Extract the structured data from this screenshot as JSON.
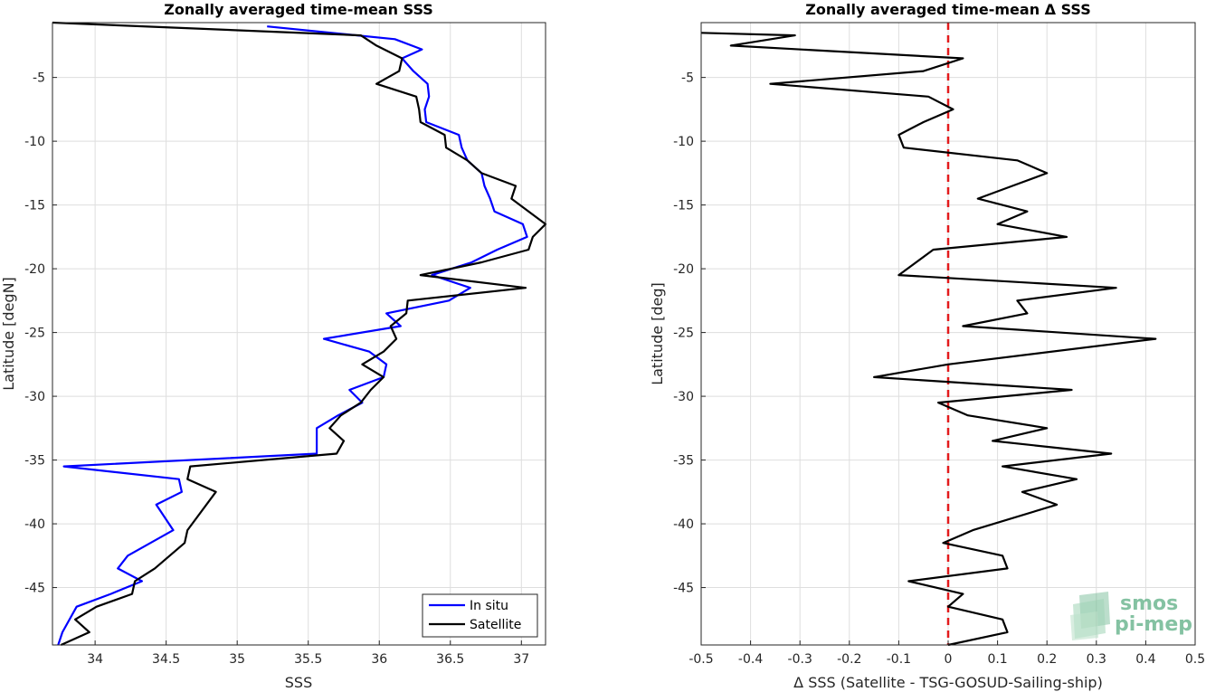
{
  "chart_data": [
    {
      "type": "line",
      "title": "Zonally averaged time-mean SSS",
      "xlabel": "SSS",
      "ylabel": "Latitude [degN]",
      "xlim": [
        33.7,
        37.17
      ],
      "ylim": [
        -49.5,
        -0.7
      ],
      "xticks": [
        34,
        34.5,
        35,
        35.5,
        36,
        36.5,
        37
      ],
      "xtick_labels": [
        "34",
        "34.5",
        "35",
        "35.5",
        "36",
        "36.5",
        "37"
      ],
      "yticks": [
        -5,
        -10,
        -15,
        -20,
        -25,
        -30,
        -35,
        -40,
        -45
      ],
      "ytick_labels": [
        "-5",
        "-10",
        "-15",
        "-20",
        "-25",
        "-30",
        "-35",
        "-40",
        "-45"
      ],
      "grid": true,
      "legend": "bottom-right",
      "series": [
        {
          "name": "In situ",
          "color": "#0000ff",
          "x": [
            35.21,
            36.11,
            36.3,
            36.16,
            36.24,
            36.34,
            36.35,
            36.32,
            36.33,
            36.56,
            36.58,
            36.62,
            36.72,
            36.74,
            36.78,
            36.81,
            37.01,
            37.04,
            36.83,
            36.65,
            36.37,
            36.64,
            36.49,
            36.05,
            36.15,
            35.61,
            35.93,
            36.05,
            36.03,
            35.79,
            35.88,
            35.71,
            35.56,
            35.56,
            33.78,
            34.59,
            34.61,
            34.43,
            34.55,
            34.23,
            34.16,
            34.33,
            34.11,
            33.87,
            33.77,
            33.74
          ],
          "y": [
            -1.0,
            -2.0,
            -2.8,
            -3.5,
            -4.5,
            -5.5,
            -6.5,
            -7.5,
            -8.5,
            -9.5,
            -10.5,
            -11.5,
            -12.5,
            -13.5,
            -14.5,
            -15.5,
            -16.5,
            -17.5,
            -18.5,
            -19.5,
            -20.5,
            -21.5,
            -22.5,
            -23.5,
            -24.5,
            -25.5,
            -26.5,
            -27.5,
            -28.5,
            -29.5,
            -30.5,
            -31.5,
            -32.5,
            -34.5,
            -35.5,
            -36.5,
            -37.5,
            -38.5,
            -40.5,
            -42.5,
            -43.5,
            -44.5,
            -45.5,
            -46.5,
            -48.5,
            -49.5
          ]
        },
        {
          "name": "Satellite",
          "color": "#000000",
          "x": [
            33.7,
            35.87,
            35.98,
            36.16,
            36.14,
            35.98,
            36.26,
            36.28,
            36.29,
            36.46,
            36.47,
            36.62,
            36.72,
            36.96,
            36.93,
            37.05,
            37.17,
            37.08,
            37.05,
            36.72,
            36.29,
            37.03,
            36.2,
            36.19,
            36.08,
            36.12,
            36.03,
            35.88,
            36.03,
            35.94,
            35.87,
            35.73,
            35.65,
            35.75,
            35.7,
            34.67,
            34.65,
            34.85,
            34.65,
            34.63,
            34.42,
            34.28,
            34.26,
            34.01,
            33.86,
            33.96,
            33.76
          ],
          "y": [
            -0.7,
            -1.7,
            -2.5,
            -3.5,
            -4.5,
            -5.5,
            -6.5,
            -7.5,
            -8.5,
            -9.5,
            -10.5,
            -11.5,
            -12.5,
            -13.5,
            -14.5,
            -15.5,
            -16.5,
            -17.5,
            -18.5,
            -19.5,
            -20.5,
            -21.5,
            -22.5,
            -23.5,
            -24.5,
            -25.5,
            -26.5,
            -27.5,
            -28.5,
            -29.5,
            -30.5,
            -31.5,
            -32.5,
            -33.5,
            -34.5,
            -35.5,
            -36.5,
            -37.5,
            -40.5,
            -41.5,
            -43.5,
            -44.5,
            -45.5,
            -46.5,
            -47.5,
            -48.5,
            -49.5
          ]
        }
      ]
    },
    {
      "type": "line",
      "title": "Zonally averaged time-mean Δ SSS",
      "xlabel": "Δ SSS (Satellite - TSG-GOSUD-Sailing-ship)",
      "ylabel": "Latitude [deg]",
      "xlim": [
        -0.5,
        0.5
      ],
      "ylim": [
        -49.5,
        -0.7
      ],
      "xticks": [
        -0.5,
        -0.4,
        -0.3,
        -0.2,
        -0.1,
        0,
        0.1,
        0.2,
        0.3,
        0.4,
        0.5
      ],
      "xtick_labels": [
        "-0.5",
        "-0.4",
        "-0.3",
        "-0.2",
        "-0.1",
        "0",
        "0.1",
        "0.2",
        "0.3",
        "0.4",
        "0.5"
      ],
      "yticks": [
        -5,
        -10,
        -15,
        -20,
        -25,
        -30,
        -35,
        -40,
        -45
      ],
      "ytick_labels": [
        "-5",
        "-10",
        "-15",
        "-20",
        "-25",
        "-30",
        "-35",
        "-40",
        "-45"
      ],
      "grid": true,
      "reference_line": {
        "x": 0,
        "color": "#e31a1c",
        "style": "dashed"
      },
      "series": [
        {
          "color": "#000000",
          "x": [
            -0.5,
            -0.31,
            -0.44,
            0.03,
            -0.05,
            -0.36,
            -0.04,
            0.01,
            -0.05,
            -0.1,
            -0.09,
            0.14,
            0.2,
            0.13,
            0.06,
            0.16,
            0.1,
            0.24,
            -0.03,
            -0.1,
            0.34,
            0.14,
            0.16,
            0.03,
            0.42,
            0.0,
            -0.15,
            0.25,
            -0.02,
            0.04,
            0.2,
            0.09,
            0.33,
            0.11,
            0.26,
            0.15,
            0.22,
            0.05,
            -0.01,
            0.11,
            0.12,
            -0.08,
            0.03,
            0.0,
            0.11,
            0.12,
            0.0
          ],
          "y": [
            -1.5,
            -1.7,
            -2.5,
            -3.5,
            -4.5,
            -5.5,
            -6.5,
            -7.5,
            -8.5,
            -9.5,
            -10.5,
            -11.5,
            -12.5,
            -13.5,
            -14.5,
            -15.5,
            -16.5,
            -17.5,
            -18.5,
            -20.5,
            -21.5,
            -22.5,
            -23.5,
            -24.5,
            -25.5,
            -27.5,
            -28.5,
            -29.5,
            -30.5,
            -31.5,
            -32.5,
            -33.5,
            -34.5,
            -35.5,
            -36.5,
            -37.5,
            -38.5,
            -40.5,
            -41.5,
            -42.5,
            -43.5,
            -44.5,
            -45.5,
            -46.5,
            -47.5,
            -48.5,
            -49.5
          ]
        }
      ]
    }
  ],
  "logo": {
    "line1": "smos",
    "line2": "pi-mep",
    "color": "#5cae84"
  }
}
